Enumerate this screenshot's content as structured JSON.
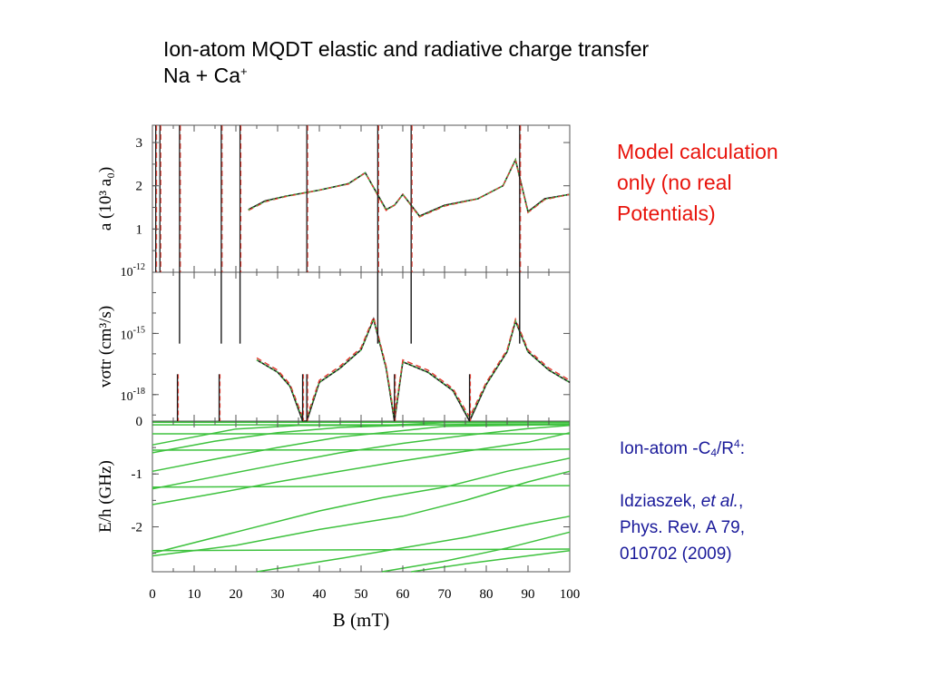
{
  "title": {
    "line1": "Ion-atom MQDT elastic and radiative charge transfer",
    "line2_prefix": "Na + Ca",
    "line2_sup": "+"
  },
  "note": {
    "lines": [
      "Model calculation",
      "only (no real",
      "Potentials)"
    ],
    "color": "#e8140c"
  },
  "reference": {
    "model_prefix": "Ion-atom -C",
    "model_sub": "4",
    "model_mid": "/R",
    "model_sup": "4",
    "model_suffix": ":",
    "authors": "Idziaszek, ",
    "etal": "et al.",
    "etal_suffix": ",",
    "journal": "Phys. Rev. A 79,",
    "article": "010702 (2009)",
    "color": "#1a1a9a"
  },
  "chart_data": [
    {
      "type": "line",
      "panel": "scattering-length",
      "ylabel": "a (10³ a₀)",
      "ylim": [
        0,
        3.4
      ],
      "yticks": [
        1,
        2,
        3
      ],
      "xlim": [
        0,
        100
      ],
      "resonances_B_mT": [
        0.8,
        1.8,
        6.5,
        16.5,
        21,
        37,
        54,
        62,
        88
      ],
      "series": [
        {
          "style": "solid",
          "color": "#1a1a1a",
          "x": [
            23,
            27,
            32,
            40,
            47,
            51,
            56,
            58,
            60,
            64,
            70,
            78,
            84,
            87,
            90,
            94,
            100
          ],
          "y": [
            1.45,
            1.65,
            1.76,
            1.9,
            2.05,
            2.3,
            1.45,
            1.55,
            1.8,
            1.3,
            1.55,
            1.7,
            2.0,
            2.6,
            1.4,
            1.7,
            1.8
          ]
        },
        {
          "style": "dashed",
          "color": "#e33b2f",
          "x": [
            23,
            27,
            32,
            40,
            47,
            51,
            56,
            58,
            60,
            64,
            70,
            78,
            84,
            87,
            90,
            94,
            100
          ],
          "y": [
            1.43,
            1.63,
            1.75,
            1.9,
            2.04,
            2.3,
            1.43,
            1.55,
            1.8,
            1.28,
            1.53,
            1.7,
            2.0,
            2.6,
            1.38,
            1.68,
            1.8
          ]
        },
        {
          "style": "dotted",
          "color": "#46c346",
          "x": [
            23,
            27,
            32,
            40,
            47,
            51,
            56,
            58,
            60,
            64,
            70,
            78,
            84,
            87,
            90,
            94,
            100
          ],
          "y": [
            1.44,
            1.64,
            1.76,
            1.9,
            2.05,
            2.3,
            1.44,
            1.55,
            1.8,
            1.29,
            1.54,
            1.7,
            2.0,
            2.6,
            1.39,
            1.69,
            1.8
          ]
        }
      ]
    },
    {
      "type": "line",
      "panel": "charge-transfer-rate",
      "ylabel": "vσtr (cm³/s)",
      "yscale": "log",
      "ylim": [
        -19.3,
        -12
      ],
      "yticks": [
        {
          "base": "10",
          "exp": "-12"
        },
        {
          "base": "10",
          "exp": "-15"
        },
        {
          "base": "10",
          "exp": "-18"
        }
      ],
      "xlim": [
        0,
        100
      ],
      "peaks_B_mT": [
        6.5,
        16.5,
        21,
        54,
        62,
        88
      ],
      "dips_B_mT": [
        6,
        16,
        36,
        37,
        58,
        76
      ],
      "series": [
        {
          "style": "solid",
          "color": "#1a1a1a",
          "x": [
            25,
            30,
            33,
            36,
            37,
            40,
            45,
            50,
            53,
            56,
            58,
            60,
            66,
            72,
            76,
            80,
            85,
            87,
            90,
            95,
            100
          ],
          "y": [
            -16.3,
            -16.9,
            -17.6,
            -19.3,
            -19.3,
            -17.4,
            -16.7,
            -15.8,
            -14.3,
            -16.7,
            -19.3,
            -16.4,
            -16.9,
            -17.8,
            -19.3,
            -17.5,
            -15.9,
            -14.4,
            -15.9,
            -16.8,
            -17.4
          ]
        },
        {
          "style": "dashed",
          "color": "#e33b2f",
          "x": [
            25,
            30,
            33,
            36,
            37,
            40,
            45,
            50,
            53,
            56,
            58,
            60,
            66,
            72,
            76,
            80,
            85,
            87,
            90,
            95,
            100
          ],
          "y": [
            -16.2,
            -16.8,
            -17.5,
            -19.1,
            -19.1,
            -17.3,
            -16.6,
            -15.7,
            -14.2,
            -16.6,
            -19.1,
            -16.3,
            -16.8,
            -17.7,
            -19.1,
            -17.4,
            -15.8,
            -14.3,
            -15.8,
            -16.7,
            -17.3
          ]
        },
        {
          "style": "dotted",
          "color": "#46c346",
          "x": [
            25,
            30,
            33,
            36,
            37,
            40,
            45,
            50,
            53,
            56,
            58,
            60,
            66,
            72,
            76,
            80,
            85,
            87,
            90,
            95,
            100
          ],
          "y": [
            -16.3,
            -16.9,
            -17.6,
            -19.2,
            -19.2,
            -17.4,
            -16.7,
            -15.8,
            -14.3,
            -16.7,
            -19.2,
            -16.4,
            -16.9,
            -17.8,
            -19.2,
            -17.5,
            -15.9,
            -14.4,
            -15.9,
            -16.8,
            -17.4
          ]
        }
      ]
    },
    {
      "type": "line",
      "panel": "energy-levels",
      "xlabel": "B (mT)",
      "ylabel": "E/h (GHz)",
      "ylim": [
        -2.85,
        0
      ],
      "yticks": [
        0,
        -1,
        -2
      ],
      "xlim": [
        0,
        100
      ],
      "xticks": [
        0,
        10,
        20,
        30,
        40,
        50,
        60,
        70,
        80,
        90,
        100
      ],
      "series_color": "#3ec23e",
      "series": [
        {
          "x": [
            0,
            100
          ],
          "y": [
            -0.02,
            -0.02
          ]
        },
        {
          "x": [
            0,
            100
          ],
          "y": [
            -0.07,
            -0.07
          ]
        },
        {
          "x": [
            0,
            100
          ],
          "y": [
            -0.24,
            -0.24
          ]
        },
        {
          "x": [
            0,
            90,
            100
          ],
          "y": [
            -0.55,
            -0.54,
            -0.53
          ]
        },
        {
          "x": [
            0,
            60,
            100
          ],
          "y": [
            -1.25,
            -1.23,
            -1.22
          ]
        },
        {
          "x": [
            0,
            100
          ],
          "y": [
            -2.45,
            -2.42
          ]
        },
        {
          "x": [
            0,
            20,
            35,
            55,
            70,
            100
          ],
          "y": [
            -0.45,
            -0.15,
            -0.08,
            -0.08,
            -0.03,
            -0.02
          ]
        },
        {
          "x": [
            0,
            15,
            30,
            45,
            60,
            75,
            100
          ],
          "y": [
            -0.6,
            -0.38,
            -0.22,
            -0.12,
            -0.08,
            -0.06,
            -0.05
          ]
        },
        {
          "x": [
            0,
            15,
            30,
            45,
            60,
            70,
            85,
            100
          ],
          "y": [
            -0.95,
            -0.72,
            -0.5,
            -0.3,
            -0.18,
            -0.1,
            -0.08,
            -0.06
          ]
        },
        {
          "x": [
            0,
            15,
            30,
            45,
            60,
            75,
            90,
            100
          ],
          "y": [
            -1.28,
            -1.05,
            -0.82,
            -0.6,
            -0.42,
            -0.27,
            -0.14,
            -0.08
          ]
        },
        {
          "x": [
            0,
            15,
            30,
            45,
            60,
            75,
            90,
            100
          ],
          "y": [
            -1.58,
            -1.37,
            -1.15,
            -0.95,
            -0.75,
            -0.57,
            -0.4,
            -0.22
          ]
        },
        {
          "x": [
            0,
            20,
            40,
            55,
            70,
            85,
            100
          ],
          "y": [
            -2.5,
            -2.1,
            -1.7,
            -1.45,
            -1.25,
            -0.95,
            -0.7
          ]
        },
        {
          "x": [
            0,
            20,
            40,
            60,
            75,
            90,
            100
          ],
          "y": [
            -2.55,
            -2.35,
            -2.05,
            -1.8,
            -1.5,
            -1.15,
            -0.95
          ]
        },
        {
          "x": [
            25,
            45,
            60,
            75,
            90,
            100
          ],
          "y": [
            -2.85,
            -2.6,
            -2.4,
            -2.2,
            -1.95,
            -1.8
          ]
        },
        {
          "x": [
            55,
            70,
            85,
            100
          ],
          "y": [
            -2.85,
            -2.65,
            -2.4,
            -2.1
          ]
        },
        {
          "x": [
            62,
            75,
            90,
            100
          ],
          "y": [
            -2.85,
            -2.7,
            -2.55,
            -2.45
          ]
        }
      ]
    }
  ]
}
